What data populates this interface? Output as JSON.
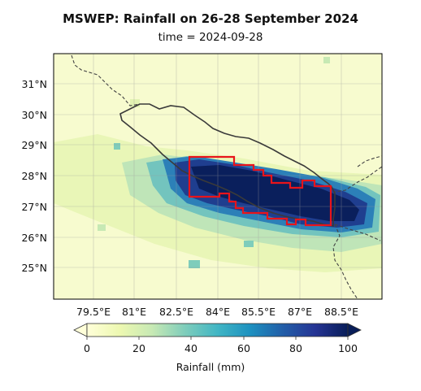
{
  "header": {
    "title": "MSWEP: Rainfall on 26-28 September 2024",
    "subtitle": "time = 2024-09-28"
  },
  "map": {
    "x_ticks": [
      "79.5°E",
      "81°E",
      "82.5°E",
      "84°E",
      "85.5°E",
      "87°E",
      "88.5°E"
    ],
    "y_ticks": [
      "31°N",
      "30°N",
      "29°N",
      "28°N",
      "27°N",
      "26°N",
      "25°N"
    ],
    "lon_range": [
      78.0,
      90.0
    ],
    "lat_range": [
      24.0,
      32.0
    ],
    "gridlines": true,
    "highlight_color": "#e8141b",
    "border_color": "#333333"
  },
  "colorbar": {
    "label": "Rainfall (mm)",
    "ticks": [
      "0",
      "20",
      "40",
      "60",
      "80",
      "100"
    ],
    "range": [
      0,
      100
    ],
    "extend": "both",
    "colormap": "YlGnBu"
  }
}
